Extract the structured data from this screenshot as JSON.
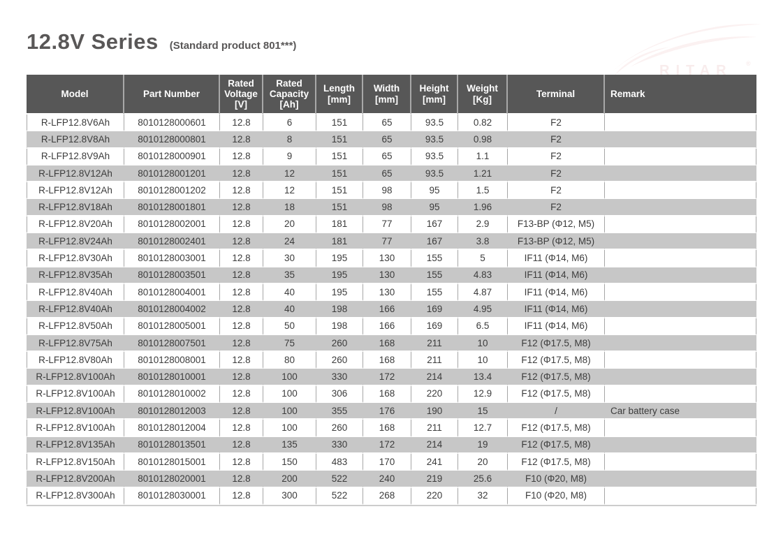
{
  "page": {
    "title": "12.8V Series",
    "subtitle": "(Standard product 801***)",
    "watermark_text": "RITAR",
    "watermark_reg": "®"
  },
  "colors": {
    "header_bg": "#575757",
    "header_text": "#ffffff",
    "row_alt_bg": "#c7c7c7",
    "grid_line": "#a6a6a6",
    "body_text": "#3c3c3c",
    "title_text": "#595757",
    "table_bottom_line": "#cccccc"
  },
  "table": {
    "columns": [
      {
        "key": "model",
        "label": "Model"
      },
      {
        "key": "part_number",
        "label": "Part Number"
      },
      {
        "key": "rated_voltage",
        "label": "Rated\nVoltage\n[V]"
      },
      {
        "key": "rated_capacity",
        "label": "Rated\nCapacity\n[Ah]"
      },
      {
        "key": "length",
        "label": "Length\n[mm]"
      },
      {
        "key": "width",
        "label": "Width\n[mm]"
      },
      {
        "key": "height",
        "label": "Height\n[mm]"
      },
      {
        "key": "weight",
        "label": "Weight\n[Kg]"
      },
      {
        "key": "terminal",
        "label": "Terminal"
      },
      {
        "key": "remark",
        "label": "Remark"
      }
    ],
    "rows": [
      [
        "R-LFP12.8V6Ah",
        "8010128000601",
        "12.8",
        "6",
        "151",
        "65",
        "93.5",
        "0.82",
        "F2",
        ""
      ],
      [
        "R-LFP12.8V8Ah",
        "8010128000801",
        "12.8",
        "8",
        "151",
        "65",
        "93.5",
        "0.98",
        "F2",
        ""
      ],
      [
        "R-LFP12.8V9Ah",
        "8010128000901",
        "12.8",
        "9",
        "151",
        "65",
        "93.5",
        "1.1",
        "F2",
        ""
      ],
      [
        "R-LFP12.8V12Ah",
        "8010128001201",
        "12.8",
        "12",
        "151",
        "65",
        "93.5",
        "1.21",
        "F2",
        ""
      ],
      [
        "R-LFP12.8V12Ah",
        "8010128001202",
        "12.8",
        "12",
        "151",
        "98",
        "95",
        "1.5",
        "F2",
        ""
      ],
      [
        "R-LFP12.8V18Ah",
        "8010128001801",
        "12.8",
        "18",
        "151",
        "98",
        "95",
        "1.96",
        "F2",
        ""
      ],
      [
        "R-LFP12.8V20Ah",
        "8010128002001",
        "12.8",
        "20",
        "181",
        "77",
        "167",
        "2.9",
        "F13-BP (Φ12, M5)",
        ""
      ],
      [
        "R-LFP12.8V24Ah",
        "8010128002401",
        "12.8",
        "24",
        "181",
        "77",
        "167",
        "3.8",
        "F13-BP (Φ12, M5)",
        ""
      ],
      [
        "R-LFP12.8V30Ah",
        "8010128003001",
        "12.8",
        "30",
        "195",
        "130",
        "155",
        "5",
        "IF11 (Φ14, M6)",
        ""
      ],
      [
        "R-LFP12.8V35Ah",
        "8010128003501",
        "12.8",
        "35",
        "195",
        "130",
        "155",
        "4.83",
        "IF11 (Φ14, M6)",
        ""
      ],
      [
        "R-LFP12.8V40Ah",
        "8010128004001",
        "12.8",
        "40",
        "195",
        "130",
        "155",
        "4.87",
        "IF11 (Φ14, M6)",
        ""
      ],
      [
        "R-LFP12.8V40Ah",
        "8010128004002",
        "12.8",
        "40",
        "198",
        "166",
        "169",
        "4.95",
        "IF11 (Φ14, M6)",
        ""
      ],
      [
        "R-LFP12.8V50Ah",
        "8010128005001",
        "12.8",
        "50",
        "198",
        "166",
        "169",
        "6.5",
        "IF11 (Φ14, M6)",
        ""
      ],
      [
        "R-LFP12.8V75Ah",
        "8010128007501",
        "12.8",
        "75",
        "260",
        "168",
        "211",
        "10",
        "F12 (Φ17.5, M8)",
        ""
      ],
      [
        "R-LFP12.8V80Ah",
        "8010128008001",
        "12.8",
        "80",
        "260",
        "168",
        "211",
        "10",
        "F12 (Φ17.5, M8)",
        ""
      ],
      [
        "R-LFP12.8V100Ah",
        "8010128010001",
        "12.8",
        "100",
        "330",
        "172",
        "214",
        "13.4",
        "F12 (Φ17.5, M8)",
        ""
      ],
      [
        "R-LFP12.8V100Ah",
        "8010128010002",
        "12.8",
        "100",
        "306",
        "168",
        "220",
        "12.9",
        "F12 (Φ17.5, M8)",
        ""
      ],
      [
        "R-LFP12.8V100Ah",
        "8010128012003",
        "12.8",
        "100",
        "355",
        "176",
        "190",
        "15",
        "/",
        "Car battery case"
      ],
      [
        "R-LFP12.8V100Ah",
        "8010128012004",
        "12.8",
        "100",
        "260",
        "168",
        "211",
        "12.7",
        "F12 (Φ17.5, M8)",
        ""
      ],
      [
        "R-LFP12.8V135Ah",
        "8010128013501",
        "12.8",
        "135",
        "330",
        "172",
        "214",
        "19",
        "F12 (Φ17.5, M8)",
        ""
      ],
      [
        "R-LFP12.8V150Ah",
        "8010128015001",
        "12.8",
        "150",
        "483",
        "170",
        "241",
        "20",
        "F12 (Φ17.5, M8)",
        ""
      ],
      [
        "R-LFP12.8V200Ah",
        "8010128020001",
        "12.8",
        "200",
        "522",
        "240",
        "219",
        "25.6",
        "F10 (Φ20, M8)",
        ""
      ],
      [
        "R-LFP12.8V300Ah",
        "8010128030001",
        "12.8",
        "300",
        "522",
        "268",
        "220",
        "32",
        "F10 (Φ20, M8)",
        ""
      ]
    ]
  }
}
